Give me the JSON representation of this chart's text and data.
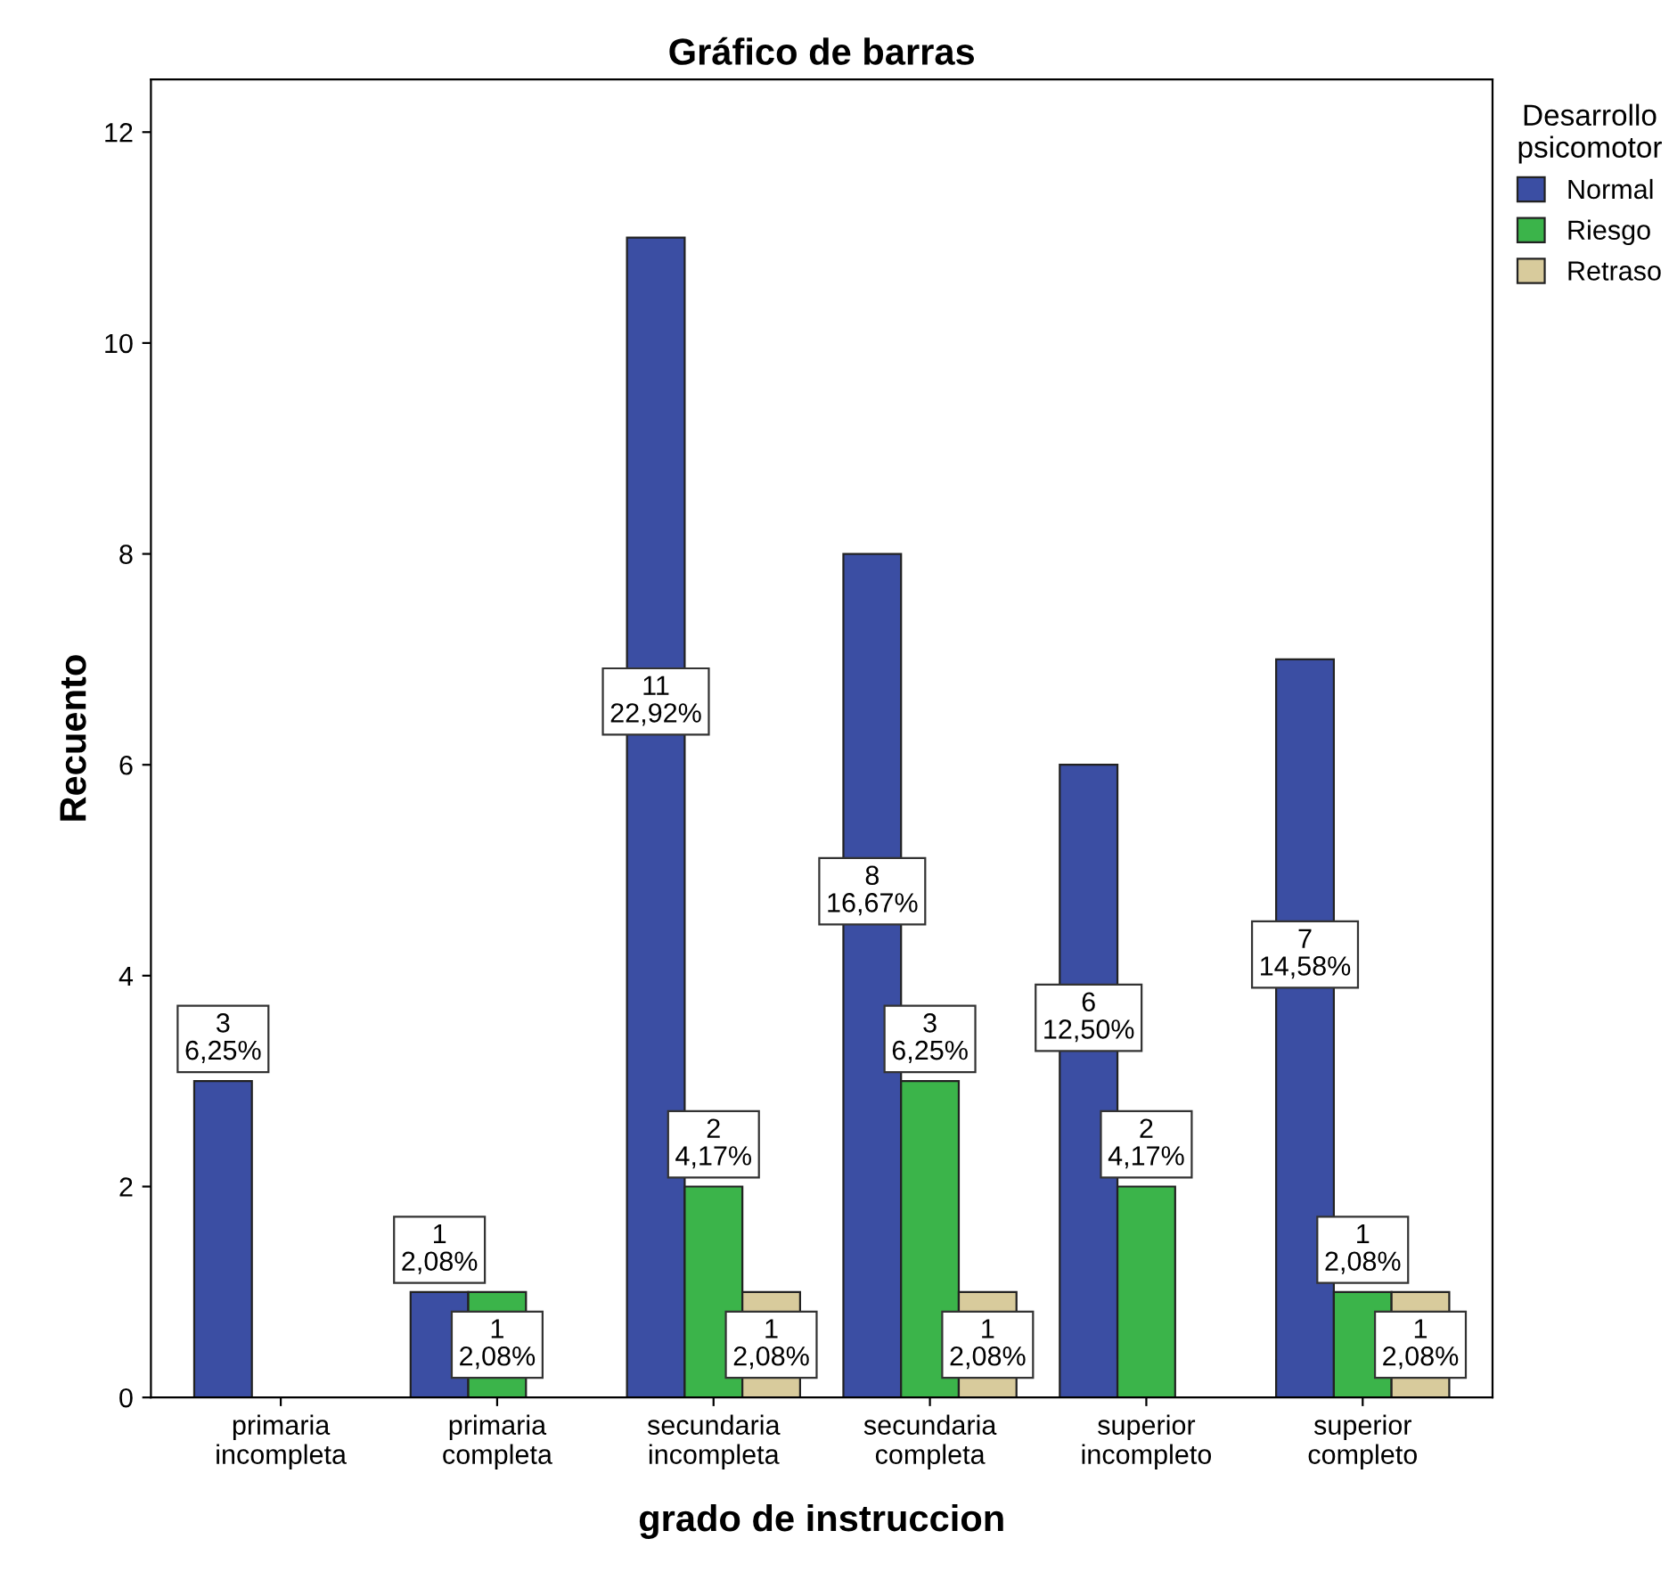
{
  "chart_data": {
    "type": "bar",
    "title": "Gráfico de barras",
    "xlabel": "grado de instruccion",
    "ylabel": "Recuento",
    "legend_title": "Desarrollo\npsicomotor",
    "categories": [
      "primaria\nincompleta",
      "primaria\ncompleta",
      "secundaria\nincompleta",
      "secundaria\ncompleta",
      "superior\nincompleto",
      "superior\ncompleto"
    ],
    "series": [
      {
        "name": "Normal",
        "color": "#3b4ea3",
        "values": [
          3,
          1,
          11,
          8,
          6,
          7
        ],
        "value_labels": [
          "3\n6,25%",
          "1\n2,08%",
          "11\n22,92%",
          "8\n16,67%",
          "6\n12,50%",
          "7\n14,58%"
        ]
      },
      {
        "name": "Riesgo",
        "color": "#3bb44a",
        "values": [
          null,
          1,
          2,
          3,
          2,
          1
        ],
        "value_labels": [
          null,
          "1\n2,08%",
          "2\n4,17%",
          "3\n6,25%",
          "2\n4,17%",
          "1\n2,08%"
        ]
      },
      {
        "name": "Retraso",
        "color": "#d8cb9c",
        "values": [
          null,
          null,
          1,
          1,
          null,
          1
        ],
        "value_labels": [
          null,
          null,
          "1\n2,08%",
          "1\n2,08%",
          null,
          "1\n2,08%"
        ]
      }
    ],
    "ylim": [
      0,
      12.5
    ],
    "yticks": [
      0,
      2,
      4,
      6,
      8,
      10,
      12
    ],
    "grid": false,
    "legend": "top right"
  }
}
